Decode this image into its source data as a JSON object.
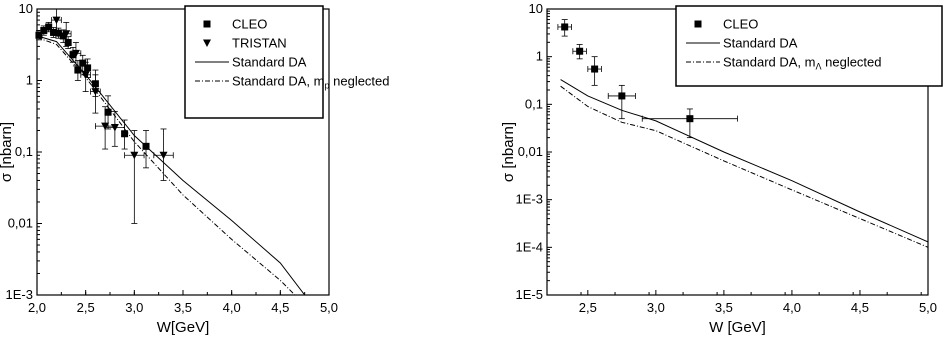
{
  "chart_data": [
    {
      "type": "scatter",
      "xlabel": "W[GeV]",
      "ylabel": "σ [nbarn]",
      "xlim": [
        2.0,
        5.0
      ],
      "ylim": [
        0.001,
        10
      ],
      "yscale": "log",
      "x_ticks": [
        "2,0",
        "2,5",
        "3,0",
        "3,5",
        "4,0",
        "4,5",
        "5,0"
      ],
      "y_ticks": [
        "1E-3",
        "0,01",
        "0,1",
        "1",
        "10"
      ],
      "legend_position": "top-right",
      "series": [
        {
          "name": "CLEO",
          "marker": "square",
          "x": [
            2.02,
            2.07,
            2.12,
            2.17,
            2.22,
            2.27,
            2.32,
            2.37,
            2.42,
            2.47,
            2.52,
            2.6,
            2.73,
            2.9,
            3.12
          ],
          "y": [
            4.3,
            5.0,
            5.6,
            4.7,
            4.6,
            4.2,
            3.4,
            2.3,
            1.4,
            1.75,
            1.5,
            0.9,
            0.36,
            0.18,
            0.12
          ],
          "y_err_low": [
            0.6,
            0.7,
            0.8,
            0.7,
            0.7,
            0.8,
            0.6,
            0.5,
            0.4,
            0.4,
            0.4,
            0.3,
            0.15,
            0.07,
            0.06
          ],
          "y_err_high": [
            0.7,
            0.8,
            0.9,
            0.8,
            0.8,
            0.9,
            0.7,
            0.6,
            0.5,
            0.5,
            0.5,
            0.5,
            0.25,
            0.1,
            0.08
          ]
        },
        {
          "name": "TRISTAN",
          "marker": "triangle-down",
          "x": [
            2.2,
            2.3,
            2.4,
            2.5,
            2.6,
            2.7,
            2.8,
            3.0,
            3.3
          ],
          "y": [
            7.0,
            4.5,
            2.4,
            1.2,
            0.7,
            0.23,
            0.22,
            0.09,
            0.09
          ],
          "y_err_low": [
            2.5,
            1.5,
            0.8,
            0.5,
            0.35,
            0.12,
            0.1,
            0.08,
            0.05
          ],
          "y_err_high": [
            3.0,
            2.0,
            1.0,
            0.6,
            0.5,
            0.2,
            0.15,
            0.11,
            0.12
          ],
          "x_err": [
            0.05,
            0.05,
            0.05,
            0.05,
            0.05,
            0.1,
            0.1,
            0.1,
            0.1
          ]
        },
        {
          "name": "Standard DA",
          "style": "solid",
          "x": [
            2.0,
            2.2,
            2.5,
            3.0,
            3.5,
            4.0,
            4.5,
            4.75
          ],
          "y": [
            4.2,
            3.5,
            1.2,
            0.17,
            0.04,
            0.011,
            0.0028,
            0.001
          ]
        },
        {
          "name": "Standard DA, m_p neglected",
          "legend_main": "Standard DA, m",
          "legend_sub": "p",
          "legend_tail": " neglected",
          "style": "dash-dot",
          "x": [
            2.0,
            2.2,
            2.5,
            3.0,
            3.5,
            4.0,
            4.5,
            4.65
          ],
          "y": [
            4.0,
            3.2,
            1.1,
            0.14,
            0.025,
            0.006,
            0.0016,
            0.001
          ]
        }
      ]
    },
    {
      "type": "scatter",
      "xlabel": "W [GeV]",
      "ylabel": "σ [nbarn]",
      "xlim": [
        2.2,
        5.0
      ],
      "ylim": [
        1e-05,
        10
      ],
      "yscale": "log",
      "x_ticks": [
        "2,5",
        "3,0",
        "3,5",
        "4,0",
        "4,5",
        "5,0"
      ],
      "y_ticks": [
        "1E-5",
        "1E-4",
        "1E-3",
        "0,01",
        "0,1",
        "1",
        "10"
      ],
      "legend_position": "top-right",
      "series": [
        {
          "name": "CLEO",
          "marker": "square",
          "x": [
            2.33,
            2.44,
            2.55,
            2.75,
            3.25
          ],
          "y": [
            4.2,
            1.3,
            0.55,
            0.15,
            0.05
          ],
          "x_err": [
            0.05,
            0.05,
            0.05,
            0.1,
            0.35
          ],
          "y_err_low": [
            1.5,
            0.4,
            0.3,
            0.1,
            0.03
          ],
          "y_err_high": [
            1.8,
            0.5,
            0.45,
            0.1,
            0.03
          ]
        },
        {
          "name": "Standard DA",
          "style": "solid",
          "x": [
            2.3,
            2.5,
            2.75,
            3.0,
            3.5,
            4.0,
            4.5,
            5.0
          ],
          "y": [
            0.33,
            0.15,
            0.075,
            0.045,
            0.01,
            0.0025,
            0.00055,
            0.00013
          ]
        },
        {
          "name": "Standard DA, m_Λ neglected",
          "legend_main": "Standard DA, m",
          "legend_sub": "Λ",
          "legend_tail": " neglected",
          "style": "dash-dot",
          "x": [
            2.3,
            2.5,
            2.75,
            3.0,
            3.5,
            4.0,
            4.5,
            5.0
          ],
          "y": [
            0.24,
            0.09,
            0.042,
            0.028,
            0.0065,
            0.0016,
            0.0004,
            0.0001
          ]
        }
      ]
    }
  ]
}
